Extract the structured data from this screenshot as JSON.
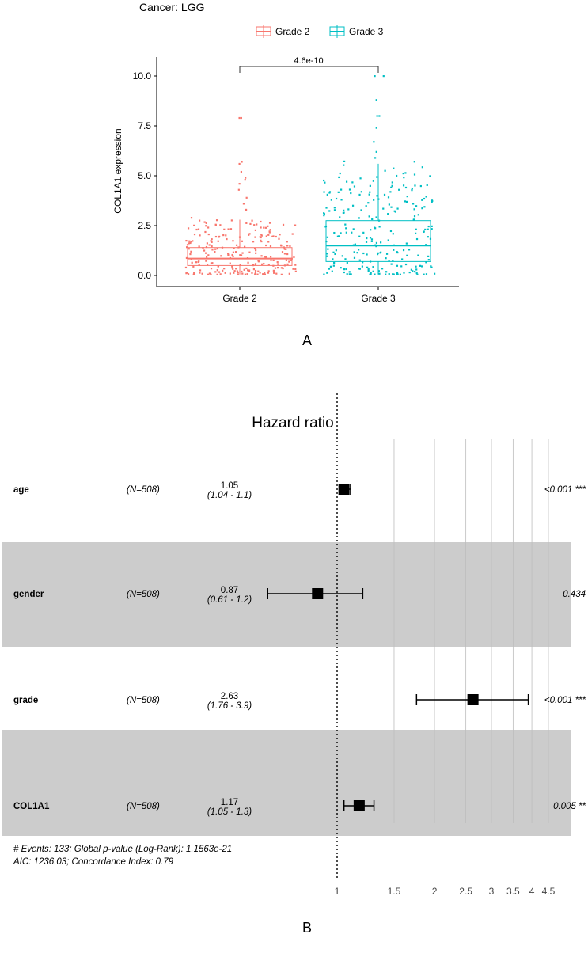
{
  "panel_labels": {
    "a": "A",
    "b": "B"
  },
  "chart_data": [
    {
      "type": "box",
      "title": "Cancer: LGG",
      "ylabel": "COL1A1 expression",
      "xlabel": "",
      "categories": [
        "Grade 2",
        "Grade 3"
      ],
      "ylim": [
        -0.4,
        11
      ],
      "yticks": [
        "0.0",
        "2.5",
        "5.0",
        "7.5",
        "10.0"
      ],
      "legend": {
        "position": "top",
        "entries": [
          "Grade 2",
          "Grade 3"
        ]
      },
      "colors": {
        "Grade 2": "#F8766D",
        "Grade 3": "#00BFC4"
      },
      "series": [
        {
          "name": "Grade 2",
          "min": 0.05,
          "q1": 0.5,
          "median": 0.85,
          "q3": 1.4,
          "whisker_high": 2.8,
          "outliers": [
            7.9,
            7.9,
            5.7,
            5.6,
            5.2,
            4.9,
            4.8,
            4.6,
            4.3,
            3.9,
            3.6,
            3.3
          ],
          "n": 240
        },
        {
          "name": "Grade 3",
          "min": 0.05,
          "q1": 0.7,
          "median": 1.5,
          "q3": 2.75,
          "whisker_high": 5.6,
          "outliers": [
            10.0,
            10.0,
            8.8,
            8.8,
            8.0,
            8.0,
            7.4,
            6.7,
            6.2,
            5.9
          ],
          "n": 250
        }
      ],
      "annotation": "4.6e-10"
    },
    {
      "type": "forest",
      "title": "Hazard ratio",
      "scale": "log",
      "xticks": [
        1,
        1.5,
        2,
        2.5,
        3,
        3.5,
        4,
        4.5
      ],
      "xtick_labels": [
        "1",
        "1.5",
        "2",
        "2.5",
        "3",
        "3.5",
        "4",
        "4.5"
      ],
      "rows": [
        {
          "name": "age",
          "n": "(N=508)",
          "hr": 1.05,
          "hr_label": "1.05",
          "ci_low": 1.04,
          "ci_high": 1.1,
          "ci_label": "(1.04 - 1.1)",
          "p": "<0.001 ***"
        },
        {
          "name": "gender",
          "n": "(N=508)",
          "hr": 0.87,
          "hr_label": "0.87",
          "ci_low": 0.61,
          "ci_high": 1.2,
          "ci_label": "(0.61 - 1.2)",
          "p": "0.434"
        },
        {
          "name": "grade",
          "n": "(N=508)",
          "hr": 2.63,
          "hr_label": "2.63",
          "ci_low": 1.76,
          "ci_high": 3.9,
          "ci_label": "(1.76 - 3.9)",
          "p": "<0.001 ***"
        },
        {
          "name": "COL1A1",
          "n": "(N=508)",
          "hr": 1.17,
          "hr_label": "1.17",
          "ci_low": 1.05,
          "ci_high": 1.3,
          "ci_label": "(1.05 - 1.3)",
          "p": "0.005 **"
        }
      ],
      "footer": [
        "# Events: 133; Global p-value (Log-Rank): 1.1563e-21",
        "AIC: 1236.03; Concordance Index: 0.79"
      ]
    }
  ]
}
